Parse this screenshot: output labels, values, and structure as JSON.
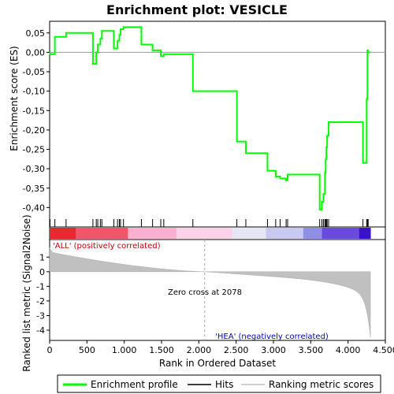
{
  "chart_data": {
    "type": "line",
    "title": "Enrichment plot: VESICLE",
    "xlabel": "Rank in Ordered Dataset",
    "ylabel_top": "Enrichment score (ES)",
    "ylabel_bottom": "Ranked list metric (Signal2Noise)",
    "xlim": [
      0,
      4500
    ],
    "ylim_top": [
      -0.45,
      0.08
    ],
    "ylim_bottom": [
      -4.7,
      2.2
    ],
    "x_ticks": [
      0,
      500,
      1000,
      1500,
      2000,
      2500,
      3000,
      3500,
      4000,
      4500
    ],
    "x_tick_labels": [
      "0",
      "500",
      "1.000",
      "1.500",
      "2.000",
      "2.500",
      "3.000",
      "3.500",
      "4.000",
      "4.500"
    ],
    "y_ticks_top": [
      0.05,
      0.0,
      -0.05,
      -0.1,
      -0.15,
      -0.2,
      -0.25,
      -0.3,
      -0.35,
      -0.4
    ],
    "y_tick_labels_top": [
      "0,05",
      "0,00",
      "-0,05",
      "-0,10",
      "-0,15",
      "-0,20",
      "-0,25",
      "-0,30",
      "-0,35",
      "-0,40"
    ],
    "y_ticks_bottom": [
      1,
      0,
      -1,
      -2,
      -3,
      -4
    ],
    "y_tick_labels_bottom": [
      "1",
      "0",
      "-1",
      "-2",
      "-3",
      "-4"
    ],
    "annotations": {
      "positive": "'ALL' (positively correlated)",
      "negative": "'HEA' (negatively correlated)",
      "zero_cross": "Zero cross at 2078"
    },
    "zero_cross": 2078,
    "n_genes": 4300,
    "hits": [
      5,
      70,
      220,
      580,
      625,
      645,
      680,
      700,
      860,
      910,
      935,
      950,
      990,
      1230,
      1380,
      1490,
      1530,
      1920,
      2510,
      2630,
      2920,
      3030,
      3090,
      3170,
      3190,
      3620,
      3650,
      3670,
      3690,
      3700,
      3710,
      3720,
      3740,
      4200,
      4250,
      4260,
      4270
    ],
    "es_values": [
      -0.005,
      0.04,
      0.05,
      -0.03,
      0.0,
      0.02,
      0.035,
      0.055,
      0.01,
      0.03,
      0.045,
      0.06,
      0.065,
      0.02,
      0.005,
      -0.01,
      -0.005,
      -0.1,
      -0.23,
      -0.26,
      -0.305,
      -0.32,
      -0.325,
      -0.33,
      -0.315,
      -0.405,
      -0.385,
      -0.365,
      -0.31,
      -0.275,
      -0.245,
      -0.215,
      -0.18,
      -0.285,
      -0.12,
      0.005,
      0.0
    ],
    "series": [
      {
        "name": "Enrichment profile",
        "color": "#00ff00"
      },
      {
        "name": "Hits",
        "color": "#000000"
      },
      {
        "name": "Ranking metric scores",
        "color": "#c0c0c0"
      }
    ]
  },
  "legend": {
    "enrichment": "Enrichment profile",
    "hits": "Hits",
    "ranking": "Ranking metric scores"
  }
}
